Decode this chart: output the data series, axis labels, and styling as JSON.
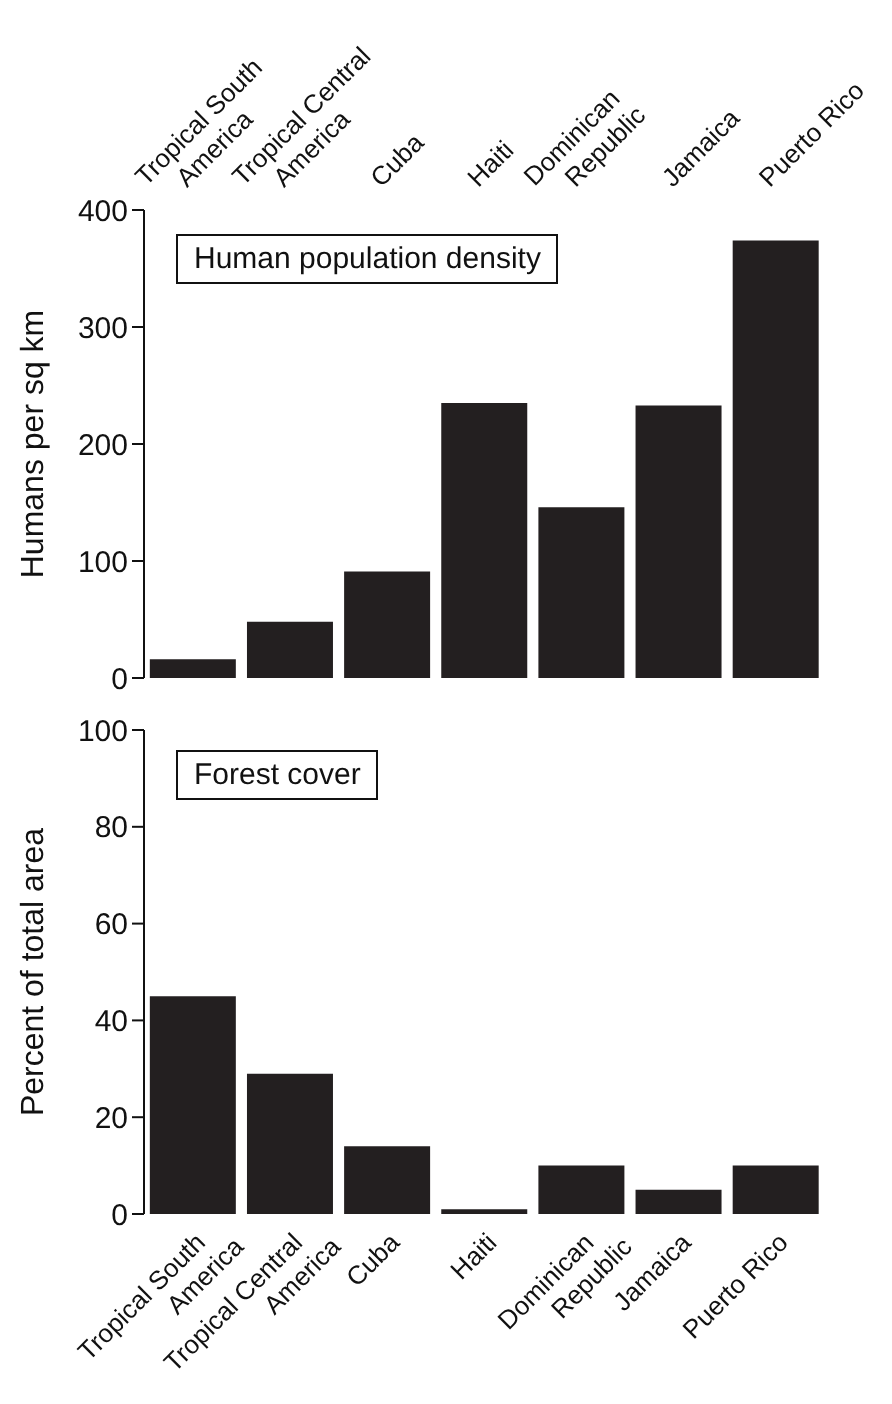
{
  "chart_data": [
    {
      "type": "bar",
      "title": "Human population density",
      "ylabel": "Humans per sq km",
      "categories": [
        "Tropical South America",
        "Tropical Central America",
        "Cuba",
        "Haiti",
        "Dominican Republic",
        "Jamaica",
        "Puerto Rico"
      ],
      "values": [
        16,
        48,
        91,
        235,
        146,
        233,
        374
      ],
      "color": "#231f20",
      "ylim": [
        0,
        400
      ],
      "yticks": [
        0,
        100,
        200,
        300,
        400
      ]
    },
    {
      "type": "bar",
      "title": "Forest cover",
      "ylabel": "Percent of total area",
      "categories": [
        "Tropical South America",
        "Tropical Central America",
        "Cuba",
        "Haiti",
        "Dominican Republic",
        "Jamaica",
        "Puerto Rico"
      ],
      "values": [
        45,
        29,
        14,
        1,
        10,
        5,
        10
      ],
      "color": "#231f20",
      "ylim": [
        0,
        100
      ],
      "yticks": [
        0,
        20,
        40,
        60,
        80,
        100
      ]
    }
  ]
}
